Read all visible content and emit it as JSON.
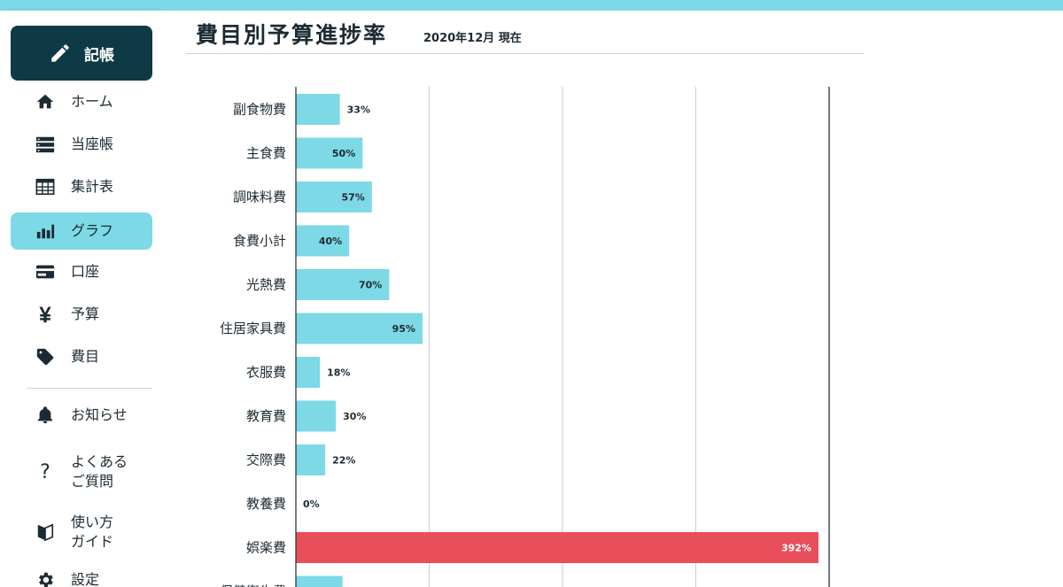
{
  "sidebar": {
    "primary_button": {
      "label": "記帳",
      "icon": "pencil-icon"
    },
    "nav": [
      {
        "label": "ホーム",
        "icon": "home-icon",
        "active": false
      },
      {
        "label": "当座帳",
        "icon": "list-icon",
        "active": false
      },
      {
        "label": "集計表",
        "icon": "table-icon",
        "active": false
      },
      {
        "label": "グラフ",
        "icon": "bar-chart-icon",
        "active": true
      },
      {
        "label": "口座",
        "icon": "credit-card-icon",
        "active": false
      },
      {
        "label": "予算",
        "icon": "yen-icon",
        "active": false
      },
      {
        "label": "費目",
        "icon": "tag-icon",
        "active": false
      }
    ],
    "secondary": [
      {
        "label": "お知らせ",
        "icon": "bell-icon"
      },
      {
        "label": "よくある\nご質問",
        "icon": "question-icon"
      },
      {
        "label": "使い方\nガイド",
        "icon": "beginner-mark-icon"
      },
      {
        "label": "設定",
        "icon": "gear-icon"
      }
    ]
  },
  "page": {
    "title": "費目別予算進捗率",
    "subtitle": "2020年12月 現在"
  },
  "colors": {
    "bar_normal": "#7dd9e6",
    "bar_over": "#e84f5b",
    "accent": "#7dd9e6",
    "primary_dark": "#0e3a45"
  },
  "chart_data": {
    "type": "bar",
    "orientation": "horizontal",
    "title": "",
    "xlabel": "",
    "ylabel": "",
    "xlim": [
      0,
      400
    ],
    "grid": true,
    "categories": [
      "副食物費",
      "主食費",
      "調味料費",
      "食費小計",
      "光熱費",
      "住居家具費",
      "衣服費",
      "教育費",
      "交際費",
      "教養費",
      "娯楽費",
      "保健衛生費"
    ],
    "values": [
      33,
      50,
      57,
      40,
      70,
      95,
      18,
      30,
      22,
      0,
      392,
      35
    ],
    "labels": [
      "33%",
      "50%",
      "57%",
      "40%",
      "70%",
      "95%",
      "18%",
      "30%",
      "22%",
      "0%",
      "392%",
      ""
    ]
  }
}
